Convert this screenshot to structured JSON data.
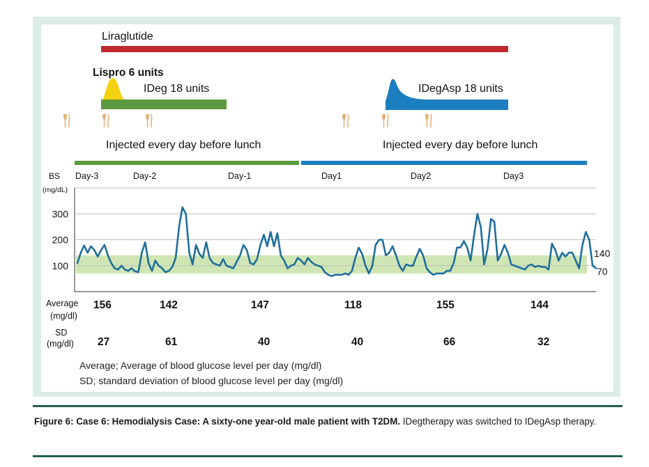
{
  "colors": {
    "liraglutide": "#c0282d",
    "lispro": "#f5d20f",
    "ideg": "#5b9a3e",
    "idegasp": "#1a7ec1",
    "trace": "#1e6e9a",
    "target_band": "#cfe6b4",
    "meal_icon": "#e3a86a",
    "panel_bg": "#dcece9",
    "rule": "#215e4f"
  },
  "drugs": {
    "liraglutide": "Liraglutide",
    "lispro": "Lispro 6 units",
    "ideg": "IDeg 18 units",
    "idegasp": "IDegAsp 18 units"
  },
  "meal_icon": "fork-knife-icon",
  "injection_notes": {
    "left": "Injected every day before lunch",
    "right": "Injected every day before lunch"
  },
  "chart_data": {
    "type": "line",
    "title": "",
    "ylabel": "BS",
    "yunit": "(mg/dL)",
    "ylim": [
      0,
      400
    ],
    "yticks": [
      "300",
      "200",
      "100"
    ],
    "yticks_values": [
      300,
      200,
      100
    ],
    "target_range": {
      "low": 70,
      "high": 140,
      "low_label": "70",
      "high_label": "140"
    },
    "days": [
      "Day-3",
      "Day-2",
      "Day-1",
      "Day1",
      "Day2",
      "Day3"
    ],
    "xlim": [
      0,
      153
    ],
    "series": [
      {
        "name": "Blood glucose",
        "x": [
          0,
          1,
          2,
          3,
          4,
          5,
          6,
          7,
          8,
          9,
          10,
          11,
          12,
          13,
          14,
          15,
          16,
          17,
          18,
          19,
          20,
          21,
          22,
          23,
          24,
          25,
          26,
          27,
          28,
          29,
          30,
          31,
          32,
          33,
          34,
          35,
          36,
          37,
          38,
          39,
          40,
          41,
          42,
          43,
          44,
          45,
          46,
          47,
          48,
          49,
          50,
          51,
          52,
          53,
          54,
          55,
          56,
          57,
          58,
          59,
          60,
          61,
          62,
          63,
          64,
          65,
          66,
          67,
          68,
          69,
          70,
          71,
          72,
          73,
          74,
          75,
          76,
          77,
          78,
          79,
          80,
          81,
          82,
          83,
          84,
          85,
          86,
          87,
          88,
          89,
          90,
          91,
          92,
          93,
          94,
          95,
          96,
          97,
          98,
          99,
          100,
          101,
          102,
          103,
          104,
          105,
          106,
          107,
          108,
          109,
          110,
          111,
          112,
          113,
          114,
          115,
          116,
          117,
          118,
          119,
          120,
          121,
          122,
          123,
          124,
          125,
          126,
          127,
          128,
          129,
          130,
          131,
          132,
          133,
          134,
          135,
          136,
          137,
          138,
          139,
          140,
          141,
          142,
          143,
          144,
          145,
          146,
          147,
          148,
          149,
          150,
          151,
          152,
          153
        ],
        "values": [
          110,
          150,
          178,
          150,
          175,
          160,
          135,
          160,
          180,
          140,
          110,
          90,
          85,
          100,
          85,
          80,
          90,
          78,
          75,
          150,
          190,
          110,
          80,
          120,
          100,
          90,
          75,
          80,
          95,
          130,
          250,
          325,
          300,
          150,
          105,
          180,
          145,
          130,
          190,
          130,
          110,
          105,
          100,
          125,
          100,
          95,
          90,
          115,
          140,
          180,
          160,
          110,
          105,
          125,
          180,
          220,
          175,
          230,
          175,
          225,
          140,
          120,
          90,
          100,
          105,
          130,
          120,
          105,
          130,
          115,
          105,
          100,
          95,
          75,
          65,
          60,
          65,
          65,
          65,
          70,
          65,
          80,
          130,
          170,
          145,
          100,
          70,
          100,
          180,
          200,
          200,
          140,
          150,
          175,
          140,
          100,
          80,
          105,
          100,
          100,
          135,
          165,
          140,
          90,
          75,
          65,
          70,
          70,
          70,
          80,
          80,
          110,
          170,
          170,
          195,
          170,
          120,
          215,
          300,
          250,
          105,
          165,
          280,
          270,
          120,
          145,
          180,
          150,
          105,
          100,
          95,
          90,
          85,
          100,
          105,
          95,
          100,
          95,
          95,
          85,
          185,
          160,
          120,
          150,
          135,
          150,
          150,
          120,
          90,
          180,
          230,
          200,
          100,
          90
        ]
      }
    ],
    "stats": {
      "average_label": "Average",
      "sd_label": "SD",
      "unit": "(mg/dl)",
      "average": [
        "156",
        "142",
        "147",
        "118",
        "155",
        "144"
      ],
      "sd": [
        "27",
        "61",
        "40",
        "40",
        "66",
        "32"
      ]
    }
  },
  "legend": {
    "average": "Average;  Average of blood glucose level per day (mg/dl)",
    "sd": "SD; standard deviation of blood glucose level per day (mg/dl)"
  },
  "caption": {
    "bold": "Figure 6: Case 6: Hemodialysis Case: A sixty-one year-old male patient with T2DM.",
    "rest": " IDegtherapy was switched to IDegAsp therapy."
  }
}
